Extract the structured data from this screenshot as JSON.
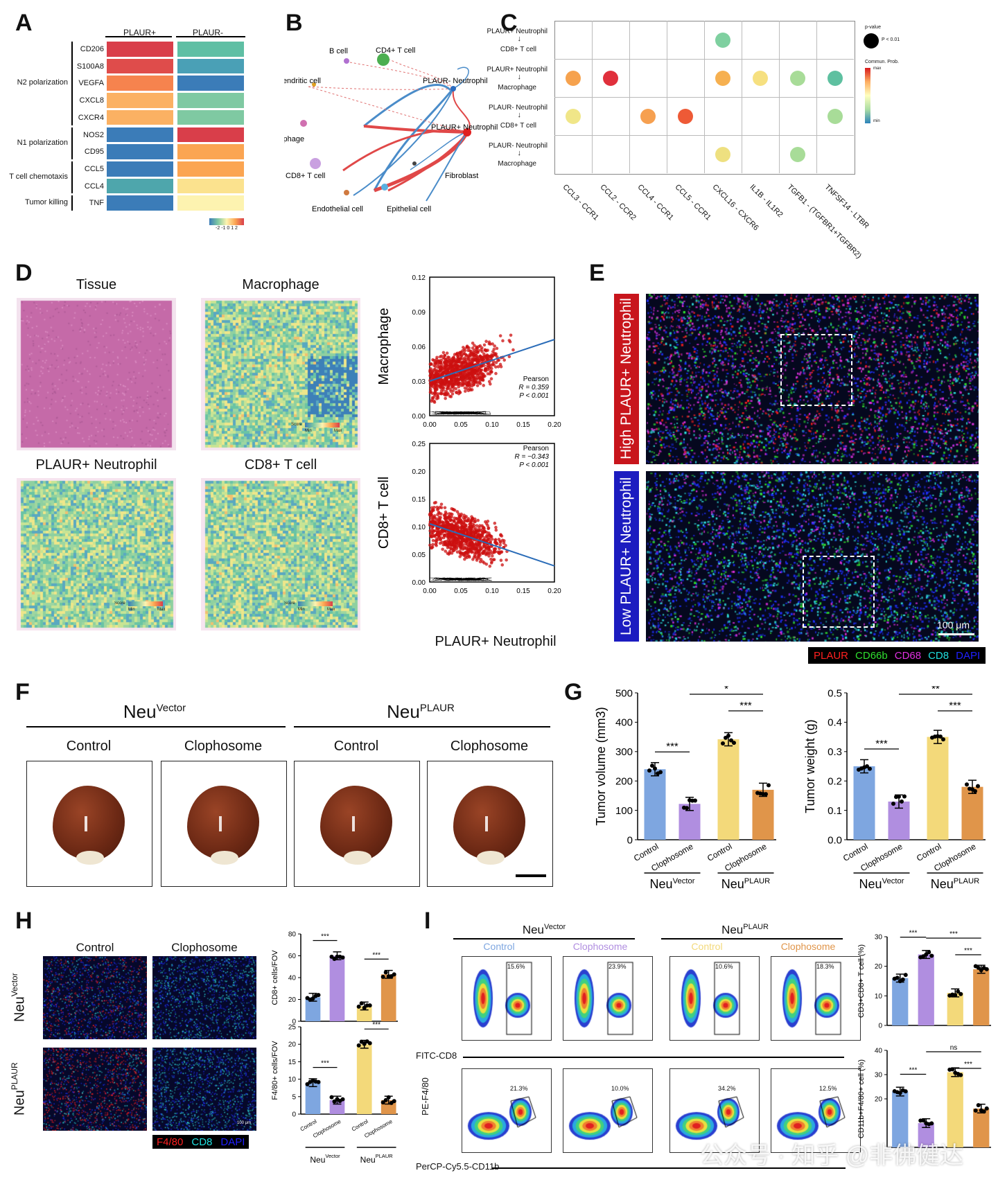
{
  "panels": {
    "a": "A",
    "b": "B",
    "c": "C",
    "d": "D",
    "e": "E",
    "f": "F",
    "g": "G",
    "h": "H",
    "i": "I"
  },
  "panelA": {
    "columns": [
      "PLAUR+",
      "PLAUR-"
    ],
    "genes": [
      "CD206",
      "S100A8",
      "VEGFA",
      "CXCL8",
      "CXCR4",
      "NOS2",
      "CD95",
      "CCL5",
      "CCL4",
      "TNF"
    ],
    "groups": [
      "N2 polarization",
      "N1 polarization",
      "T cell chemotaxis",
      "Tumor killing"
    ],
    "scale_ticks": "-2 -1 0 1 2",
    "colors_plus": [
      "#d93e4a",
      "#df4c4b",
      "#f6834e",
      "#fbb163",
      "#fbb163",
      "#3b7cb8",
      "#3b7cb8",
      "#3b7cb8",
      "#4ea6ac",
      "#3b7cb8"
    ],
    "colors_minus": [
      "#5fbfa4",
      "#4aa0b6",
      "#3b7cb8",
      "#7fc9a2",
      "#7fc9a2",
      "#d93e4a",
      "#fba552",
      "#fba552",
      "#fbe28e",
      "#fdf3b0"
    ]
  },
  "panelB": {
    "nodes": [
      "B cell",
      "CD4+ T cell",
      "Dendritic cell",
      "PLAUR- Neutrophil",
      "PLAUR+ Neutrophil",
      "Macrophage",
      "CD8+ T cell",
      "Fibroblast",
      "Endothelial cell",
      "Epithelial cell"
    ]
  },
  "panelC": {
    "rows_top": [
      "PLAUR+ Neutrophil",
      "PLAUR+ Neutrophil",
      "PLAUR- Neutrophil",
      "PLAUR- Neutrophil"
    ],
    "arrow": "↓",
    "rows_bottom": [
      "CD8+ T cell",
      "Macrophage",
      "CD8+ T cell",
      "Macrophage"
    ],
    "cols": [
      "CCL3 - CCR1",
      "CCL2 - CCR2",
      "CCL4 - CCR1",
      "CCL5 - CCR1",
      "CXCL16 - CXCR6",
      "IL1B - IL1R2",
      "TGFB1 - (TGFBR1+TGFBR2)",
      "TNFSF14 - LTBR"
    ],
    "legend_pvalue_title": "p-value",
    "legend_pvalue": "P < 0.01",
    "legend_prob_title": "Commun. Prob.",
    "legend_max": "max",
    "legend_min": "min"
  },
  "panelD": {
    "titles": [
      "Tissue",
      "Macrophage",
      "PLAUR+ Neutrophil",
      "CD8+ T cell"
    ],
    "score": "Score",
    "min": "Min",
    "max": "Max",
    "scatter_xlabel": "PLAUR+ Neutrophil",
    "scatter1": {
      "ylabel": "Macrophage",
      "method": "Pearson",
      "r": "R = 0.359",
      "p": "P < 0.001",
      "yticks": [
        "0.12",
        "0.09",
        "0.06",
        "0.03",
        "0.00"
      ],
      "xticks": [
        "0.00",
        "0.05",
        "0.10",
        "0.15",
        "0.20"
      ]
    },
    "scatter2": {
      "ylabel": "CD8+ T cell",
      "method": "Pearson",
      "r": "R = −0.343",
      "p": "P < 0.001",
      "yticks": [
        "0.25",
        "0.20",
        "0.15",
        "0.10",
        "0.05",
        "0.00"
      ],
      "xticks": [
        "0.00",
        "0.05",
        "0.10",
        "0.15",
        "0.20"
      ]
    }
  },
  "panelE": {
    "high": "High PLAUR+ Neutrophil",
    "low": "Low PLAUR+ Neutrophil",
    "scalebar": "100 μm",
    "legend": [
      {
        "t": "PLAUR",
        "c": "#ff2020"
      },
      {
        "t": "CD66b",
        "c": "#2fe02f"
      },
      {
        "t": "CD68",
        "c": "#e030e0"
      },
      {
        "t": "CD8",
        "c": "#20e0e0"
      },
      {
        "t": "DAPI",
        "c": "#2020ff"
      }
    ]
  },
  "panelF": {
    "groups": [
      "Neu",
      "Vector",
      "Neu",
      "PLAUR"
    ],
    "conditions": [
      "Control",
      "Clophosome",
      "Control",
      "Clophosome"
    ]
  },
  "panelG": {
    "chart_data": [
      {
        "type": "bar",
        "title": "",
        "ylabel": "Tumor volume (mm3)",
        "ylim": [
          0,
          500
        ],
        "yticks": [
          "0",
          "100",
          "200",
          "300",
          "400",
          "500"
        ],
        "categories": [
          "Control",
          "Clophosome",
          "Control",
          "Clophosome"
        ],
        "values": [
          240,
          122,
          342,
          170
        ],
        "sig": [
          "***",
          "*",
          "***"
        ],
        "groups": [
          "Neu",
          "Vector",
          "Neu",
          "PLAUR"
        ]
      },
      {
        "type": "bar",
        "title": "",
        "ylabel": "Tumor weight (g)",
        "ylim": [
          0,
          0.5
        ],
        "yticks": [
          "0.0",
          "0.1",
          "0.2",
          "0.3",
          "0.4",
          "0.5"
        ],
        "categories": [
          "Control",
          "Clophosome",
          "Control",
          "Clophosome"
        ],
        "values": [
          0.25,
          0.13,
          0.35,
          0.18
        ],
        "sig": [
          "***",
          "**",
          "***"
        ],
        "groups": [
          "Neu",
          "Vector",
          "Neu",
          "PLAUR"
        ]
      },
      {
        "type": "bar",
        "title": "",
        "ylabel": "CD8+ cells/FOV",
        "ylim": [
          0,
          80
        ],
        "yticks": [
          "0",
          "20",
          "40",
          "60",
          "80"
        ],
        "categories": [
          "Control",
          "Clophosome",
          "Control",
          "Clophosome"
        ],
        "values": [
          22,
          60,
          14,
          43
        ],
        "sig": [
          "***",
          "***"
        ],
        "groups": [
          "Neu",
          "Vector",
          "Neu",
          "PLAUR"
        ]
      },
      {
        "type": "bar",
        "title": "",
        "ylabel": "F4/80+ cells/FOV",
        "ylim": [
          0,
          25
        ],
        "yticks": [
          "0",
          "5",
          "10",
          "15",
          "20",
          "25"
        ],
        "categories": [
          "Control",
          "Clophosome",
          "Control",
          "Clophosome"
        ],
        "values": [
          9,
          4,
          20,
          4
        ],
        "sig": [
          "***",
          "***"
        ],
        "groups": [
          "Neu",
          "Vector",
          "Neu",
          "PLAUR"
        ]
      },
      {
        "type": "bar",
        "title": "",
        "ylabel": "CD3+CD8+ T cell (%)",
        "ylim": [
          0,
          30
        ],
        "yticks": [
          "0",
          "10",
          "20",
          "30"
        ],
        "categories": [
          "Control",
          "Clophosome",
          "Control",
          "Clophosome"
        ],
        "values": [
          16,
          24,
          11,
          19
        ],
        "sig": [
          "***",
          "***",
          "***"
        ]
      },
      {
        "type": "bar",
        "title": "",
        "ylabel": "CD11b+F4/80+ cell (%)",
        "ylim": [
          0,
          40
        ],
        "yticks": [
          "20",
          "30",
          "40"
        ],
        "categories": [
          "Control",
          "Clophosome",
          "Control",
          "Clophosome"
        ],
        "values": [
          23,
          10,
          31,
          16
        ],
        "sig": [
          "***",
          "ns",
          "***"
        ]
      }
    ]
  },
  "panelH": {
    "cols": [
      "Control",
      "Clophosome"
    ],
    "rows": [
      "Neu",
      "Vector",
      "Neu",
      "PLAUR"
    ],
    "scalebar": "100 μm",
    "legend": [
      {
        "t": "F4/80",
        "c": "#ff2020"
      },
      {
        "t": "CD8",
        "c": "#20e0e0"
      },
      {
        "t": "DAPI",
        "c": "#2020ff"
      }
    ]
  },
  "panelI": {
    "groups": [
      "Neu",
      "Vector",
      "Neu",
      "PLAUR"
    ],
    "conditions": [
      "Control",
      "Clophosome",
      "Control",
      "Clophosome"
    ],
    "cond_colors": [
      "#7ea6e0",
      "#b08ee0",
      "#f3d97a",
      "#e0954a"
    ],
    "top_pct": [
      "15.6%",
      "23.9%",
      "10.6%",
      "18.3%"
    ],
    "bot_pct": [
      "21.3%",
      "10.0%",
      "34.2%",
      "12.5%"
    ],
    "xlabel_top": "FITC-CD8",
    "xlabel_bot": "PerCP-Cy5.5-CD11b",
    "ylabel_bot": "PE-F4/80"
  },
  "watermark": "公众号 · 知乎 @非佛健达"
}
